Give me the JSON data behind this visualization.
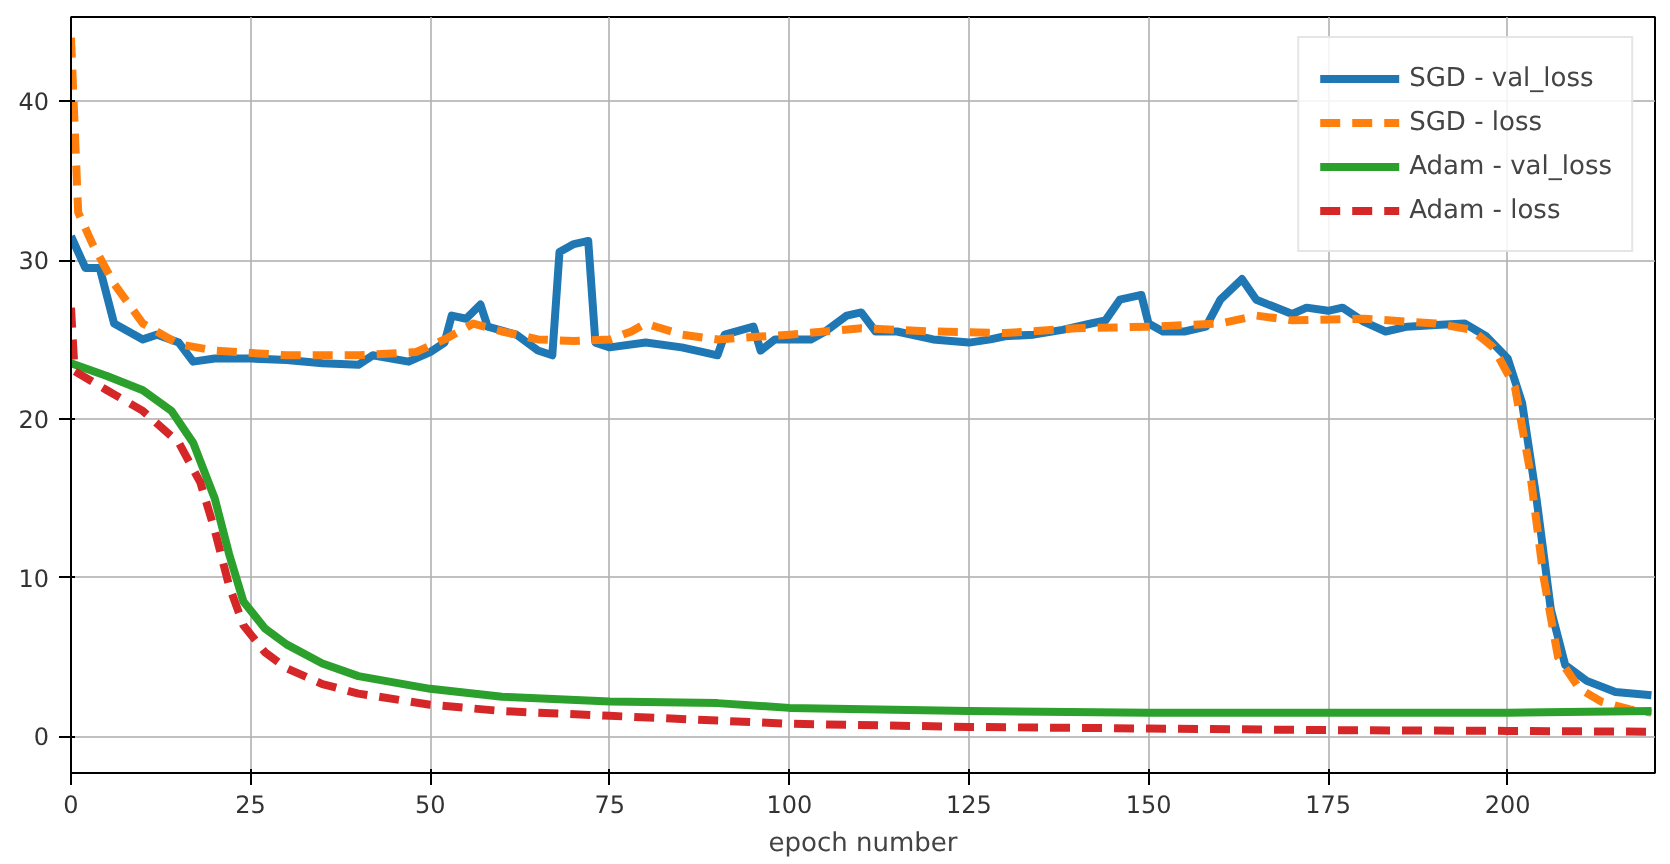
{
  "chart_data": {
    "type": "line",
    "xlabel": "epoch number",
    "xlim": [
      0,
      220.5
    ],
    "ylim": [
      -2.3,
      45.3
    ],
    "xticks": [
      0,
      25,
      50,
      75,
      100,
      125,
      150,
      175,
      200
    ],
    "yticks": [
      0,
      10,
      20,
      30,
      40
    ],
    "grid": true,
    "legend": "top right",
    "series": [
      {
        "name": "SGD - val_loss",
        "color": "#1f77b4",
        "line_style": "solid",
        "x": [
          0,
          2,
          4,
          6,
          8,
          10,
          12,
          15,
          17,
          20,
          25,
          30,
          35,
          40,
          42,
          47,
          50,
          52,
          53,
          55,
          57,
          58,
          62,
          65,
          67,
          68,
          70,
          72,
          73,
          75,
          80,
          85,
          88,
          90,
          91,
          95,
          96,
          98,
          103,
          105,
          108,
          110,
          112,
          115,
          120,
          125,
          128,
          130,
          134,
          138,
          142,
          144,
          146,
          149,
          150,
          152,
          155,
          158,
          160,
          163,
          165,
          170,
          172,
          175,
          177,
          180,
          183,
          186,
          190,
          194,
          197,
          200,
          202,
          204,
          206,
          208,
          211,
          215,
          220
        ],
        "values": [
          31.5,
          29.5,
          29.5,
          26,
          25.5,
          25,
          25.3,
          24.8,
          23.6,
          23.8,
          23.8,
          23.7,
          23.5,
          23.4,
          24,
          23.6,
          24.2,
          24.8,
          26.5,
          26.3,
          27.2,
          25.8,
          25.3,
          24.3,
          24,
          30.5,
          31,
          31.2,
          24.8,
          24.5,
          24.8,
          24.5,
          24.2,
          24,
          25.3,
          25.8,
          24.3,
          25,
          25,
          25.5,
          26.5,
          26.7,
          25.5,
          25.5,
          25,
          24.8,
          25,
          25.2,
          25.3,
          25.6,
          26,
          26.2,
          27.5,
          27.8,
          26,
          25.5,
          25.5,
          25.8,
          27.5,
          28.8,
          27.5,
          26.6,
          27,
          26.8,
          27,
          26.1,
          25.5,
          25.8,
          25.9,
          26,
          25.2,
          23.8,
          21,
          15,
          8,
          4.5,
          3.5,
          2.8,
          2.6
        ]
      },
      {
        "name": "SGD - loss",
        "color": "#ff7f0e",
        "line_style": "dashed",
        "x": [
          0,
          1,
          3,
          6,
          10,
          15,
          20,
          30,
          40,
          48,
          52,
          56,
          60,
          65,
          70,
          75,
          78,
          80,
          85,
          90,
          100,
          110,
          120,
          130,
          140,
          150,
          160,
          165,
          170,
          180,
          190,
          195,
          198,
          201,
          203,
          205,
          207,
          210,
          213,
          217,
          220
        ],
        "values": [
          44,
          33,
          31,
          28.5,
          26,
          24.7,
          24.3,
          24,
          24,
          24.2,
          25,
          26,
          25.5,
          25,
          24.9,
          25,
          25.5,
          26,
          25.3,
          25,
          25.3,
          25.7,
          25.5,
          25.4,
          25.7,
          25.8,
          26,
          26.5,
          26.2,
          26.3,
          26,
          25.6,
          24.5,
          22,
          17,
          10,
          5,
          3,
          2.2,
          1.7,
          1.5
        ]
      },
      {
        "name": "Adam - val_loss",
        "color": "#2ca02c",
        "line_style": "solid",
        "x": [
          0,
          5,
          10,
          14,
          17,
          20,
          22,
          24,
          27,
          30,
          35,
          40,
          50,
          60,
          75,
          90,
          100,
          125,
          150,
          175,
          200,
          220
        ],
        "values": [
          23.5,
          22.7,
          21.8,
          20.5,
          18.5,
          15,
          11.5,
          8.5,
          6.8,
          5.8,
          4.6,
          3.8,
          3,
          2.5,
          2.2,
          2.1,
          1.8,
          1.6,
          1.5,
          1.5,
          1.5,
          1.6
        ]
      },
      {
        "name": "Adam - loss",
        "color": "#d62728",
        "line_style": "dashed",
        "x": [
          0,
          0.5,
          5,
          10,
          15,
          18,
          20,
          22,
          24,
          27,
          30,
          35,
          40,
          50,
          60,
          75,
          90,
          100,
          125,
          150,
          175,
          200,
          220
        ],
        "values": [
          27,
          23,
          21.8,
          20.5,
          18.5,
          16,
          13,
          9.5,
          7,
          5.3,
          4.3,
          3.3,
          2.7,
          2,
          1.6,
          1.3,
          1,
          0.8,
          0.6,
          0.5,
          0.4,
          0.35,
          0.3
        ]
      }
    ]
  }
}
